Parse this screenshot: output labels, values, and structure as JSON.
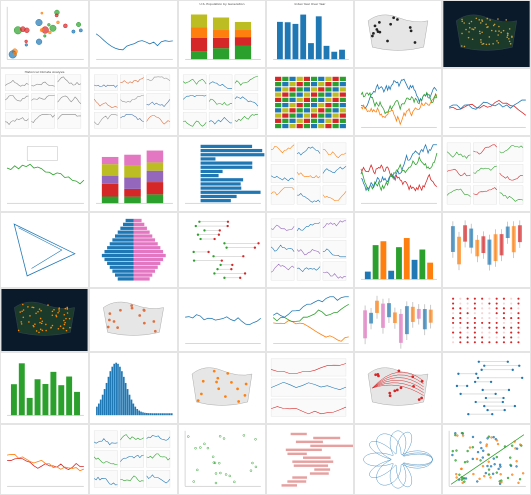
{
  "gallery": {
    "tiles": [
      {
        "id": "t0",
        "type": "scatter",
        "title": "",
        "colors": [
          "#2ca02c",
          "#d62728",
          "#ff7f0e",
          "#1f77b4"
        ]
      },
      {
        "id": "t1",
        "type": "multiline",
        "title": "",
        "colors": [
          "#1f77b4"
        ]
      },
      {
        "id": "t2",
        "type": "stackedbar",
        "title": "U.S. Population by Generation",
        "colors": [
          "#2ca02c",
          "#d62728",
          "#ff7f0e",
          "#bcbd22"
        ]
      },
      {
        "id": "t3",
        "type": "bar",
        "title": "Index Year Over Year",
        "colors": [
          "#1f77b4"
        ]
      },
      {
        "id": "t4",
        "type": "map-us",
        "title": "",
        "colors": [
          "#cccccc",
          "#222222"
        ]
      },
      {
        "id": "t5",
        "type": "map-world-dark",
        "title": "",
        "colors": [
          "#0b1a2b",
          "#c8a040",
          "#2c6e2c"
        ]
      },
      {
        "id": "t6",
        "type": "spark-list",
        "title": "Historical Climate Analysis",
        "colors": [
          "#888888"
        ]
      },
      {
        "id": "t7",
        "type": "heat-bars",
        "title": "",
        "colors": [
          "#4a78b0",
          "#e07040",
          "#999999"
        ]
      },
      {
        "id": "t8",
        "type": "scatter-lines",
        "title": "",
        "colors": [
          "#2ca02c",
          "#1f77b4"
        ]
      },
      {
        "id": "t9",
        "type": "waffle",
        "title": "",
        "colors": [
          "#d62728",
          "#2ca02c",
          "#1f77b4",
          "#bcbd22"
        ]
      },
      {
        "id": "t10",
        "type": "dense-lines",
        "title": "",
        "colors": [
          "#1f77b4",
          "#ff7f0e",
          "#2ca02c"
        ]
      },
      {
        "id": "t11",
        "type": "line",
        "title": "",
        "colors": [
          "#d62728",
          "#1f77b4"
        ]
      },
      {
        "id": "t12",
        "type": "line-annot",
        "title": "",
        "colors": [
          "#2ca02c"
        ]
      },
      {
        "id": "t13",
        "type": "stack-tall",
        "title": "",
        "colors": [
          "#2ca02c",
          "#d62728",
          "#9467bd",
          "#bcbd22",
          "#e377c2"
        ]
      },
      {
        "id": "t14",
        "type": "hbar",
        "title": "",
        "colors": [
          "#1f77b4"
        ]
      },
      {
        "id": "t15",
        "type": "area-band",
        "title": "",
        "colors": [
          "#ff7f0e",
          "#1f77b4"
        ]
      },
      {
        "id": "t16",
        "type": "dense-lines",
        "title": "",
        "colors": [
          "#d62728",
          "#1f77b4",
          "#2ca02c"
        ]
      },
      {
        "id": "t17",
        "type": "small-mult",
        "title": "",
        "colors": [
          "#2ca02c",
          "#d62728"
        ]
      },
      {
        "id": "t18",
        "type": "triangle",
        "title": "",
        "colors": [
          "#1f77b4"
        ]
      },
      {
        "id": "t19",
        "type": "pyramid",
        "title": "",
        "colors": [
          "#1f77b4",
          "#e377c2"
        ]
      },
      {
        "id": "t20",
        "type": "dot-rows",
        "title": "",
        "colors": [
          "#2ca02c",
          "#d62728"
        ]
      },
      {
        "id": "t21",
        "type": "panel-grid",
        "title": "",
        "colors": [
          "#9467bd",
          "#1f77b4"
        ]
      },
      {
        "id": "t22",
        "type": "bar",
        "title": "",
        "colors": [
          "#1f77b4",
          "#2ca02c",
          "#ff7f0e"
        ]
      },
      {
        "id": "t23",
        "type": "box",
        "title": "",
        "colors": [
          "#1f77b4",
          "#ff7f0e",
          "#d62728"
        ]
      },
      {
        "id": "t24",
        "type": "map-world-dark",
        "title": "",
        "colors": [
          "#0b1a2b",
          "#ff8a00",
          "#1f77b4"
        ]
      },
      {
        "id": "t25",
        "type": "map-us",
        "title": "",
        "colors": [
          "#cccccc",
          "#e07040"
        ]
      },
      {
        "id": "t26",
        "type": "ts-blue",
        "title": "",
        "colors": [
          "#1f77b4"
        ]
      },
      {
        "id": "t27",
        "type": "line",
        "title": "",
        "colors": [
          "#1f77b4",
          "#ff7f0e",
          "#2ca02c"
        ]
      },
      {
        "id": "t28",
        "type": "box",
        "title": "",
        "colors": [
          "#e377c2",
          "#1f77b4",
          "#ff7f0e"
        ]
      },
      {
        "id": "t29",
        "type": "dot-matrix",
        "title": "",
        "colors": [
          "#d62728"
        ]
      },
      {
        "id": "t30",
        "type": "bar-green",
        "title": "",
        "colors": [
          "#2ca02c"
        ]
      },
      {
        "id": "t31",
        "type": "histogram",
        "title": "",
        "colors": [
          "#1f77b4"
        ]
      },
      {
        "id": "t32",
        "type": "map-small",
        "title": "",
        "colors": [
          "#2ca02c",
          "#ff7f0e"
        ]
      },
      {
        "id": "t33",
        "type": "table",
        "title": "",
        "colors": [
          "#d62728",
          "#1f77b4"
        ]
      },
      {
        "id": "t34",
        "type": "map-lines",
        "title": "",
        "colors": [
          "#1f77b4",
          "#d62728"
        ]
      },
      {
        "id": "t35",
        "type": "dumbbell",
        "title": "",
        "colors": [
          "#1f77b4"
        ]
      },
      {
        "id": "t36",
        "type": "multiline",
        "title": "",
        "colors": [
          "#d62728",
          "#ff7f0e"
        ]
      },
      {
        "id": "t37",
        "type": "mini-dash",
        "title": "",
        "colors": [
          "#1f77b4",
          "#2ca02c"
        ]
      },
      {
        "id": "t38",
        "type": "scatter-rings",
        "title": "",
        "colors": [
          "#2ca02c"
        ]
      },
      {
        "id": "t39",
        "type": "gantt",
        "title": "",
        "colors": [
          "#e6a0a0",
          "#1f77b4"
        ]
      },
      {
        "id": "t40",
        "type": "spiro",
        "title": "",
        "colors": [
          "#1f77b4"
        ]
      },
      {
        "id": "t41",
        "type": "scatter-dense",
        "title": "",
        "colors": [
          "#ff7f0e",
          "#1f77b4",
          "#2ca02c"
        ]
      }
    ]
  }
}
